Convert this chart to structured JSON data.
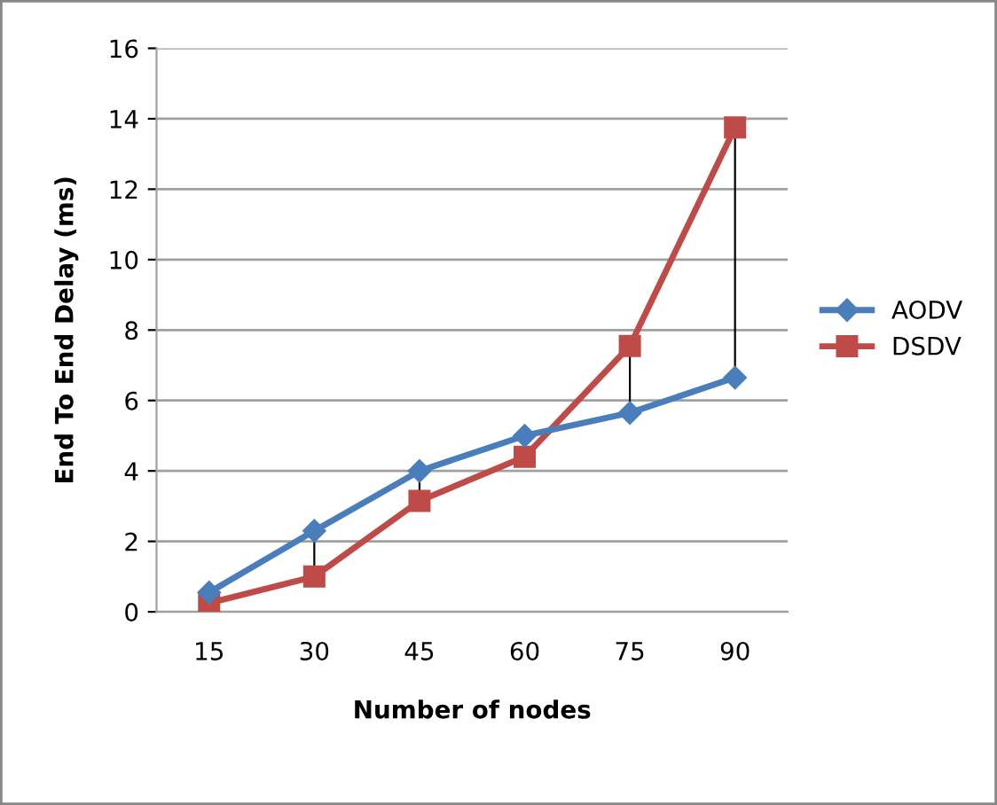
{
  "chart_data": {
    "type": "line",
    "xlabel": "Number of nodes",
    "ylabel": "End To End Delay (ms)",
    "categories": [
      "15",
      "30",
      "45",
      "60",
      "75",
      "90"
    ],
    "series": [
      {
        "name": "AODV",
        "color": "#4a7ebb",
        "marker": "diamond",
        "values": [
          0.55,
          2.3,
          4.0,
          5.0,
          5.65,
          6.65
        ]
      },
      {
        "name": "DSDV",
        "color": "#be4b48",
        "marker": "square",
        "values": [
          0.25,
          1.0,
          3.15,
          4.4,
          7.55,
          13.75
        ]
      }
    ],
    "ylim": [
      0,
      16
    ],
    "yticks": [
      0,
      2,
      4,
      6,
      8,
      10,
      12,
      14,
      16
    ],
    "grid": "y",
    "legend": "right"
  }
}
